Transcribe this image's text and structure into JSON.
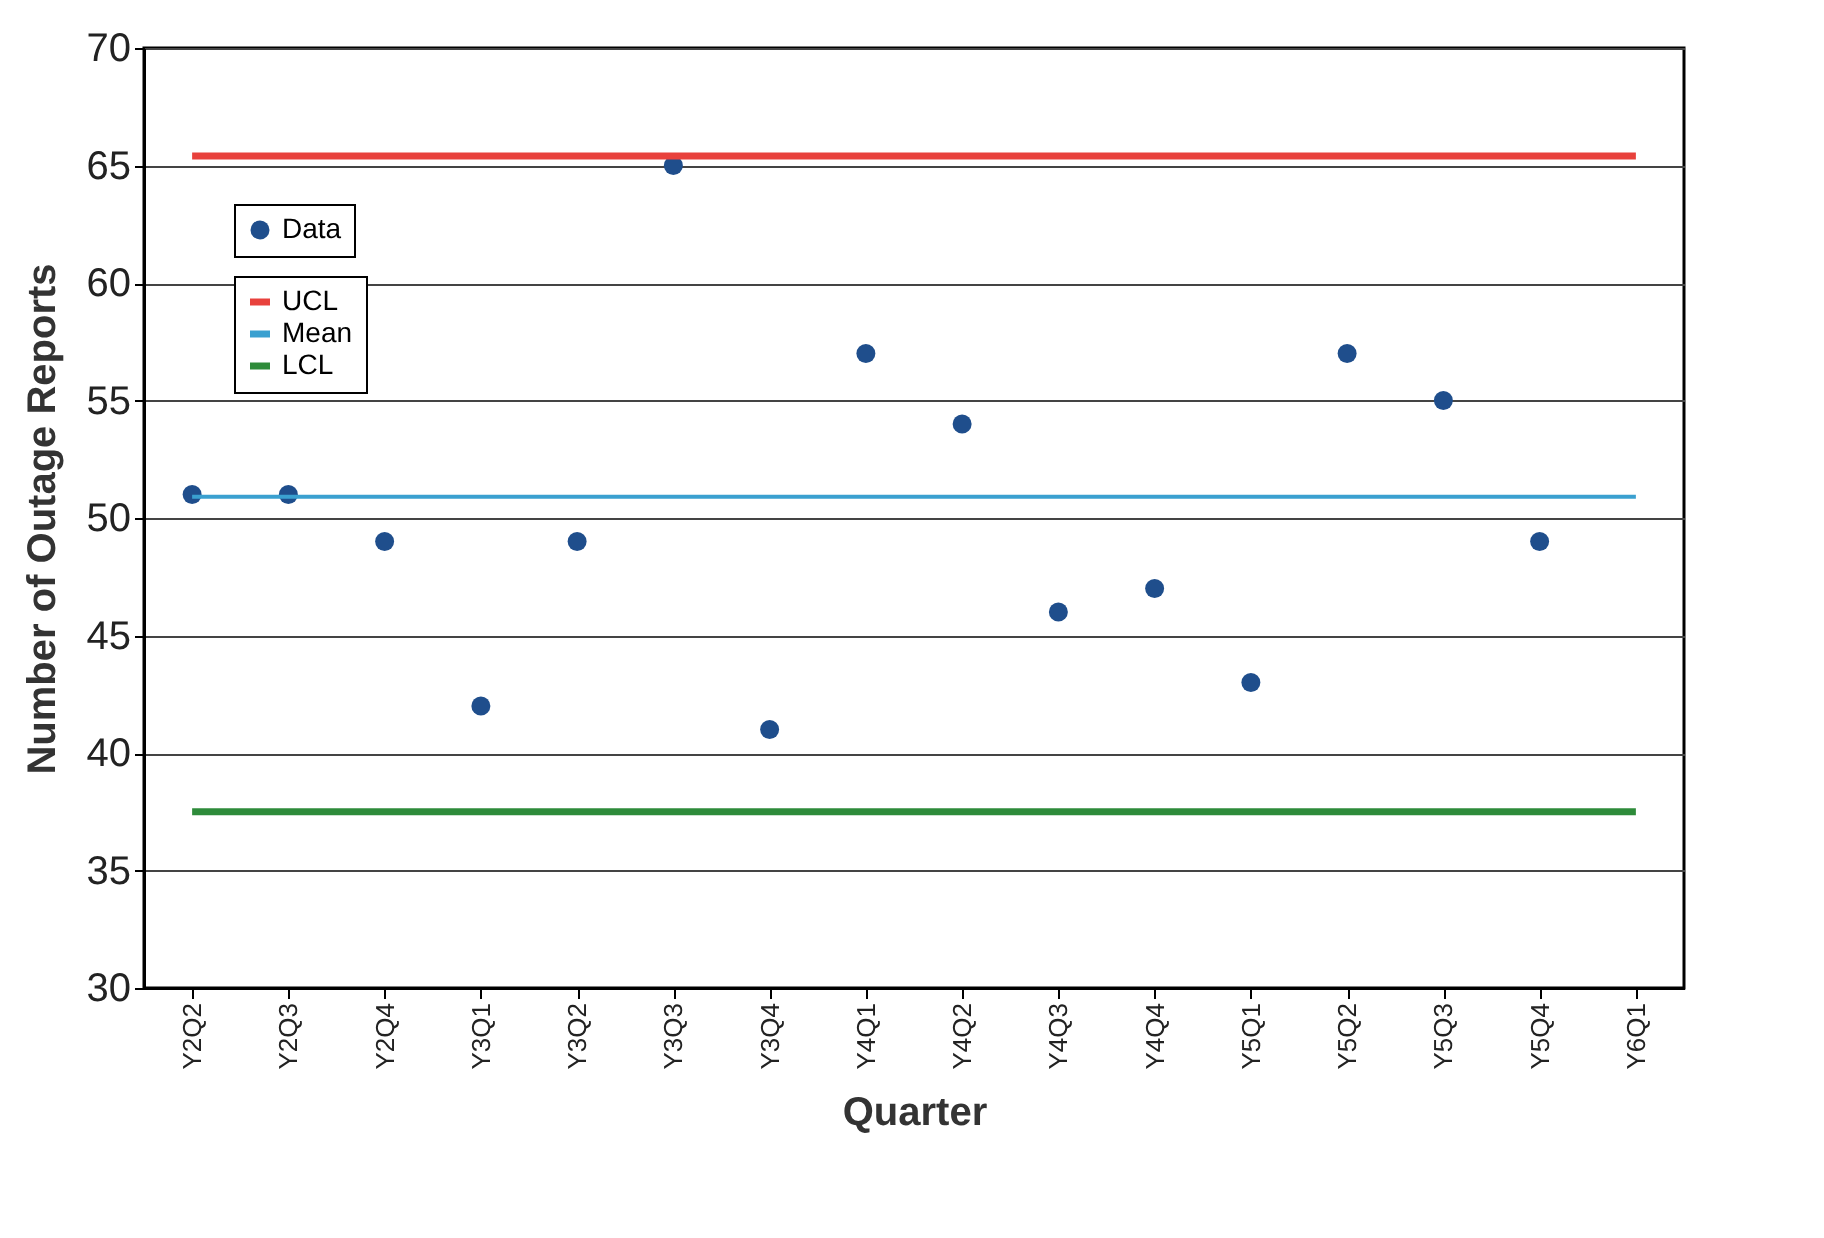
{
  "chart_data": {
    "type": "scatter",
    "xlabel": "Quarter",
    "ylabel": "Number of Outage Reports",
    "categories": [
      "Y2Q2",
      "Y2Q3",
      "Y2Q4",
      "Y3Q1",
      "Y3Q2",
      "Y3Q3",
      "Y3Q4",
      "Y4Q1",
      "Y4Q2",
      "Y4Q3",
      "Y4Q4",
      "Y5Q1",
      "Y5Q2",
      "Y5Q3",
      "Y5Q4",
      "Y6Q1"
    ],
    "series": [
      {
        "name": "Data",
        "marker": "circle",
        "color": "#1f4e8c",
        "values": [
          51,
          51,
          49,
          42,
          49,
          65,
          41,
          57,
          54,
          46,
          47,
          43,
          57,
          55,
          49,
          null
        ]
      },
      {
        "name": "UCL",
        "type": "line",
        "color": "#e8413c",
        "values": [
          65.4,
          65.4,
          65.4,
          65.4,
          65.4,
          65.4,
          65.4,
          65.4,
          65.4,
          65.4,
          65.4,
          65.4,
          65.4,
          65.4,
          65.4,
          65.4
        ]
      },
      {
        "name": "Mean",
        "type": "line",
        "color": "#3aa0d0",
        "values": [
          50.9,
          50.9,
          50.9,
          50.9,
          50.9,
          50.9,
          50.9,
          50.9,
          50.9,
          50.9,
          50.9,
          50.9,
          50.9,
          50.9,
          50.9,
          50.9
        ]
      },
      {
        "name": "LCL",
        "type": "line",
        "color": "#2e8b3a",
        "values": [
          37.5,
          37.5,
          37.5,
          37.5,
          37.5,
          37.5,
          37.5,
          37.5,
          37.5,
          37.5,
          37.5,
          37.5,
          37.5,
          37.5,
          37.5,
          37.5
        ]
      }
    ],
    "ylim": [
      30,
      70
    ],
    "yticks": [
      30,
      35,
      40,
      45,
      50,
      55,
      60,
      65,
      70
    ],
    "grid": "y",
    "legend": "top left"
  }
}
